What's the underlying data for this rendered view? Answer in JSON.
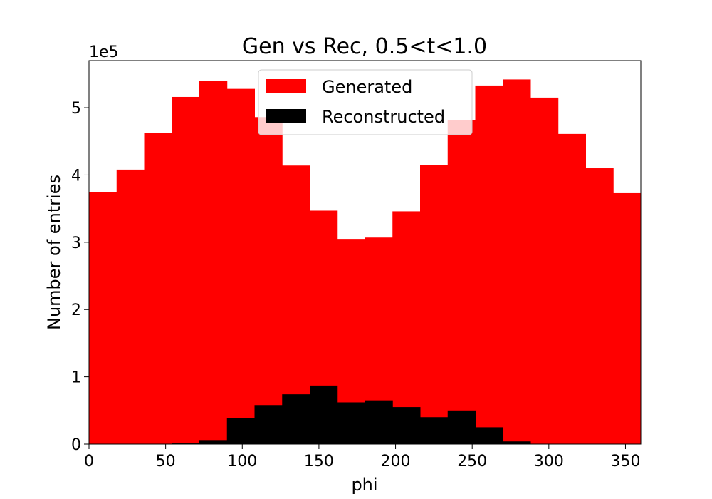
{
  "chart_data": {
    "type": "bar",
    "title": "Gen vs Rec, 0.5<t<1.0",
    "xlabel": "phi",
    "ylabel": "Number of entries",
    "y_offset_label": "1e5",
    "xlim": [
      0,
      360
    ],
    "ylim": [
      0,
      5.7
    ],
    "x_ticks": [
      0,
      50,
      100,
      150,
      200,
      250,
      300,
      350
    ],
    "y_ticks": [
      0,
      1,
      2,
      3,
      4,
      5
    ],
    "bin_edges": [
      0,
      18,
      36,
      54,
      72,
      90,
      108,
      126,
      144,
      162,
      180,
      198,
      216,
      234,
      252,
      270,
      288,
      306,
      324,
      342,
      360
    ],
    "legend_position": "upper center",
    "grid": false,
    "series": [
      {
        "name": "Generated",
        "color": "#ff0000",
        "values": [
          3.74,
          4.08,
          4.62,
          5.16,
          5.4,
          5.28,
          4.86,
          4.14,
          3.47,
          3.05,
          3.07,
          3.46,
          4.15,
          4.82,
          5.33,
          5.42,
          5.15,
          4.61,
          4.1,
          3.73
        ]
      },
      {
        "name": "Reconstructed",
        "color": "#000000",
        "values": [
          0.0,
          0.0,
          0.0,
          0.01,
          0.06,
          0.39,
          0.58,
          0.74,
          0.87,
          0.62,
          0.65,
          0.55,
          0.4,
          0.5,
          0.25,
          0.04,
          0.0,
          0.0,
          0.0,
          0.0
        ]
      }
    ]
  }
}
